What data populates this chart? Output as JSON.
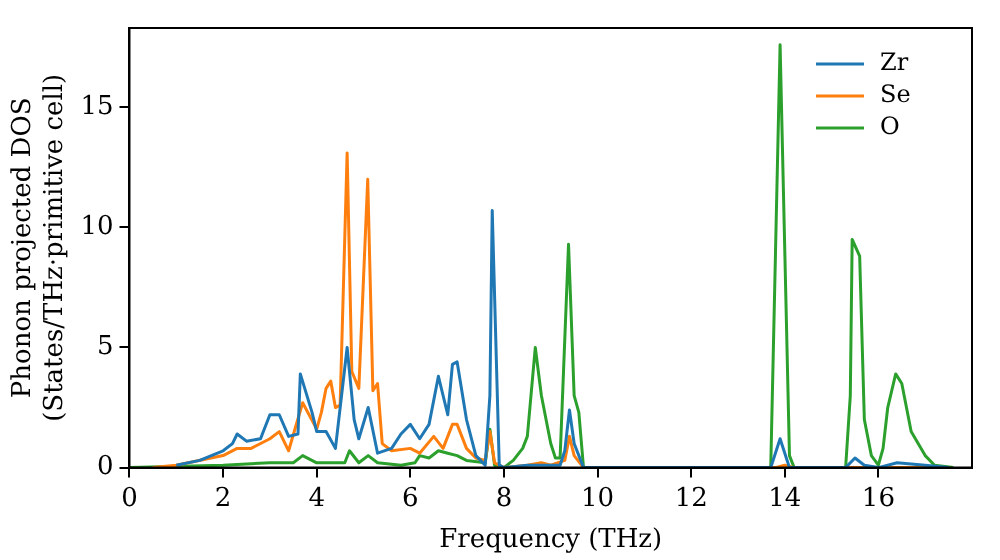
{
  "chart_data": {
    "type": "line",
    "xlabel": "Frequency (THz)",
    "ylabel": "Phonon projected DOS\n(States/THz·primitive cell)",
    "xlim": [
      0,
      18
    ],
    "ylim": [
      0,
      18.3
    ],
    "xticks": [
      0,
      2,
      4,
      6,
      8,
      10,
      12,
      14,
      16
    ],
    "yticks": [
      0,
      5,
      10,
      15
    ],
    "grid": false,
    "legend": "top right",
    "marker": "none",
    "line_style": "solid",
    "series": [
      {
        "name": "Zr",
        "color": "#1f77b4",
        "x": [
          1,
          1.5,
          2,
          2.2,
          2.3,
          2.5,
          2.8,
          3,
          3.2,
          3.4,
          3.6,
          3.65,
          3.9,
          4,
          4.2,
          4.4,
          4.65,
          4.8,
          4.9,
          5.1,
          5.3,
          5.6,
          5.8,
          6,
          6.2,
          6.4,
          6.6,
          6.8,
          6.9,
          7,
          7.2,
          7.4,
          7.6,
          7.7,
          7.75,
          7.9,
          8,
          8.5,
          9,
          9.2,
          9.3,
          9.4,
          9.5,
          9.7,
          13.7,
          13.9,
          14.1,
          15.3,
          15.5,
          15.7,
          16,
          16.4,
          17,
          17.5
        ],
        "values": [
          0.1,
          0.3,
          0.7,
          1,
          1.4,
          1.1,
          1.2,
          2.2,
          2.2,
          1.3,
          1.4,
          3.9,
          2.3,
          1.5,
          1.5,
          0.8,
          5,
          2,
          1.2,
          2.5,
          0.6,
          0.8,
          1.4,
          1.8,
          1.2,
          1.8,
          3.8,
          2.2,
          4.3,
          4.4,
          2,
          0.5,
          0.1,
          3,
          10.7,
          0.1,
          0,
          0.1,
          0.1,
          0.1,
          0.7,
          2.4,
          1,
          0,
          0,
          1.2,
          0,
          0,
          0.4,
          0.1,
          0,
          0.2,
          0.1,
          0
        ]
      },
      {
        "name": "Se",
        "color": "#ff7f0e",
        "x": [
          0.5,
          1,
          2,
          2.3,
          2.6,
          3,
          3.2,
          3.4,
          3.7,
          4,
          4.1,
          4.2,
          4.3,
          4.4,
          4.5,
          4.65,
          4.75,
          4.9,
          5.09,
          5.2,
          5.3,
          5.4,
          5.6,
          6,
          6.2,
          6.5,
          6.7,
          6.9,
          7,
          7.2,
          7.4,
          7.6,
          7.7,
          7.8,
          8,
          8.5,
          8.8,
          9,
          9.3,
          9.4,
          9.5,
          9.7,
          13.8,
          14,
          14.2,
          17.5
        ],
        "values": [
          0,
          0.1,
          0.5,
          0.8,
          0.8,
          1.2,
          1.5,
          0.7,
          2.7,
          1.6,
          2.3,
          3.3,
          3.6,
          2.5,
          2.6,
          13.1,
          4,
          3.3,
          12,
          3.2,
          3.5,
          1,
          0.7,
          0.8,
          0.6,
          1.3,
          0.8,
          1.8,
          1.8,
          0.8,
          0.4,
          0.3,
          1.5,
          0.2,
          0,
          0.1,
          0.2,
          0.1,
          0.3,
          1.3,
          0.5,
          0,
          0,
          0.1,
          0,
          0
        ]
      },
      {
        "name": "O",
        "color": "#2ca02c",
        "x": [
          0,
          2,
          3,
          3.5,
          3.7,
          4,
          4.6,
          4.7,
          4.9,
          5.1,
          5.3,
          5.8,
          6.1,
          6.2,
          6.4,
          6.6,
          6.8,
          7,
          7.2,
          7.6,
          7.7,
          7.8,
          8,
          8.2,
          8.4,
          8.5,
          8.67,
          8.8,
          9,
          9.1,
          9.2,
          9.38,
          9.5,
          9.6,
          9.7,
          13.7,
          13.9,
          14.1,
          14.2,
          15.3,
          15.4,
          15.44,
          15.6,
          15.7,
          15.85,
          16,
          16.1,
          16.2,
          16.37,
          16.5,
          16.7,
          17,
          17.2,
          17.6
        ],
        "values": [
          0,
          0.1,
          0.2,
          0.2,
          0.5,
          0.2,
          0.2,
          0.7,
          0.2,
          0.5,
          0.2,
          0.1,
          0.2,
          0.5,
          0.4,
          0.7,
          0.6,
          0.5,
          0.3,
          0.2,
          1.6,
          0.1,
          0,
          0.3,
          0.8,
          1.3,
          5,
          3,
          1,
          0.4,
          0.4,
          9.3,
          3,
          2.3,
          0,
          0,
          17.6,
          0.5,
          0,
          0,
          3,
          9.5,
          8.8,
          2,
          0.5,
          0.1,
          0.8,
          2.5,
          3.9,
          3.5,
          1.5,
          0.5,
          0.1,
          0
        ]
      }
    ]
  }
}
